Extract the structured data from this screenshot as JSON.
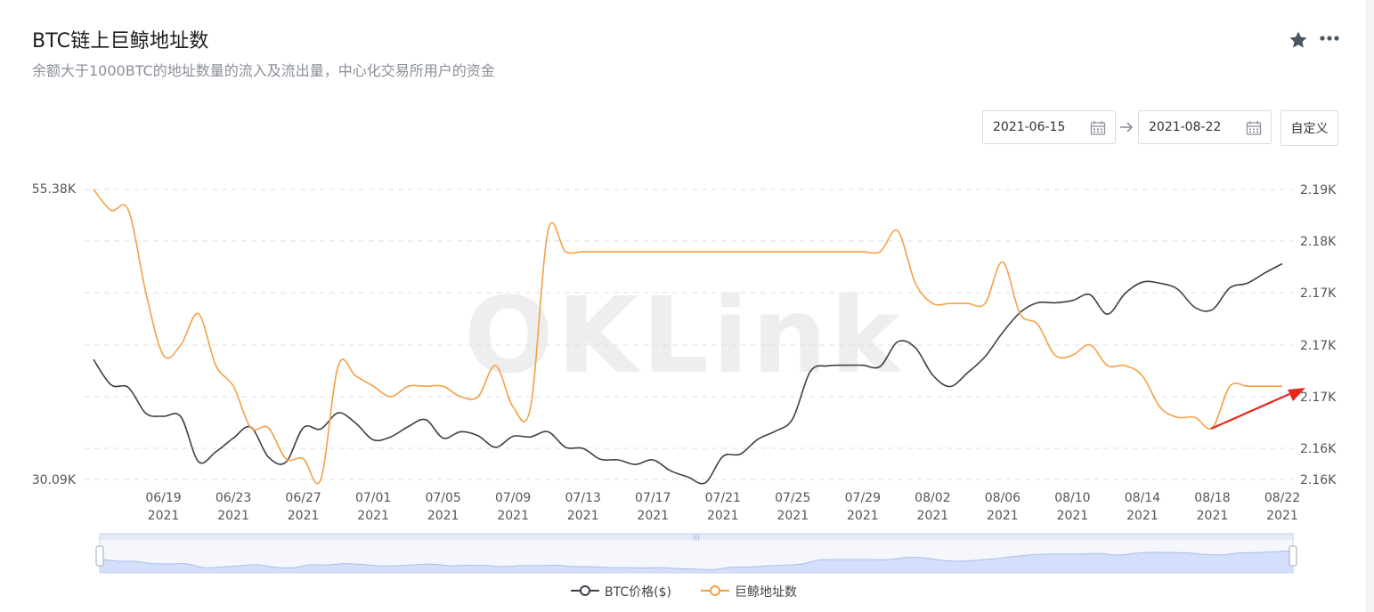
{
  "header": {
    "title": "BTC链上巨鲸地址数",
    "subtitle": "余额大于1000BTC的地址数量的流入及流出量，中心化交易所用户的资金",
    "star_icon": "star-icon",
    "more_icon": "more-dots-icon"
  },
  "controls": {
    "start_date": "2021-06-15",
    "end_date": "2021-08-22",
    "custom_label": "自定义",
    "calendar_icon": "calendar-icon",
    "arrow_icon": "arrow-right-icon"
  },
  "watermark": "OKLink",
  "colors": {
    "btc": "#3d3f4a",
    "whale": "#f5a044",
    "grid": "#dcdfe6",
    "annotation": "#e8261c",
    "zoom_fill": "#d4e0fb",
    "zoom_line": "#a9bde8"
  },
  "chart_data": {
    "type": "line",
    "x_ticks": [
      {
        "date": "06/19",
        "year": "2021"
      },
      {
        "date": "06/23",
        "year": "2021"
      },
      {
        "date": "06/27",
        "year": "2021"
      },
      {
        "date": "07/01",
        "year": "2021"
      },
      {
        "date": "07/05",
        "year": "2021"
      },
      {
        "date": "07/09",
        "year": "2021"
      },
      {
        "date": "07/13",
        "year": "2021"
      },
      {
        "date": "07/17",
        "year": "2021"
      },
      {
        "date": "07/21",
        "year": "2021"
      },
      {
        "date": "07/25",
        "year": "2021"
      },
      {
        "date": "07/29",
        "year": "2021"
      },
      {
        "date": "08/02",
        "year": "2021"
      },
      {
        "date": "08/06",
        "year": "2021"
      },
      {
        "date": "08/10",
        "year": "2021"
      },
      {
        "date": "08/14",
        "year": "2021"
      },
      {
        "date": "08/18",
        "year": "2021"
      },
      {
        "date": "08/22",
        "year": "2021"
      }
    ],
    "y_left": {
      "min_label": "30.09K",
      "max_label": "55.38K",
      "range": [
        30090,
        55380
      ]
    },
    "y_right": {
      "tick_labels": [
        "2.19K",
        "2.18K",
        "2.17K",
        "2.17K",
        "2.17K",
        "2.16K",
        "2.16K"
      ],
      "range": [
        2157,
        2185
      ]
    },
    "series": [
      {
        "name": "BTC价格($)",
        "color": "#3d3f4a",
        "x": [
          "2021-06-15",
          "2021-06-16",
          "2021-06-17",
          "2021-06-18",
          "2021-06-19",
          "2021-06-20",
          "2021-06-21",
          "2021-06-22",
          "2021-06-23",
          "2021-06-24",
          "2021-06-25",
          "2021-06-26",
          "2021-06-27",
          "2021-06-28",
          "2021-06-29",
          "2021-06-30",
          "2021-07-01",
          "2021-07-02",
          "2021-07-03",
          "2021-07-04",
          "2021-07-05",
          "2021-07-06",
          "2021-07-07",
          "2021-07-08",
          "2021-07-09",
          "2021-07-10",
          "2021-07-11",
          "2021-07-12",
          "2021-07-13",
          "2021-07-14",
          "2021-07-15",
          "2021-07-16",
          "2021-07-17",
          "2021-07-18",
          "2021-07-19",
          "2021-07-20",
          "2021-07-21",
          "2021-07-22",
          "2021-07-23",
          "2021-07-24",
          "2021-07-25",
          "2021-07-26",
          "2021-07-27",
          "2021-07-28",
          "2021-07-29",
          "2021-07-30",
          "2021-07-31",
          "2021-08-01",
          "2021-08-02",
          "2021-08-03",
          "2021-08-04",
          "2021-08-05",
          "2021-08-06",
          "2021-08-07",
          "2021-08-08",
          "2021-08-09",
          "2021-08-10",
          "2021-08-11",
          "2021-08-12",
          "2021-08-13",
          "2021-08-14",
          "2021-08-15",
          "2021-08-16",
          "2021-08-17",
          "2021-08-18",
          "2021-08-19",
          "2021-08-20",
          "2021-08-21",
          "2021-08-22"
        ],
        "values": [
          40550,
          38350,
          38100,
          35850,
          35600,
          35550,
          31650,
          32500,
          33700,
          34650,
          32050,
          31600,
          34600,
          34500,
          35900,
          35000,
          33550,
          33800,
          34700,
          35300,
          33700,
          34250,
          33900,
          32900,
          33850,
          33800,
          34250,
          32900,
          32800,
          31850,
          31800,
          31400,
          31800,
          30850,
          30300,
          29800,
          32100,
          32300,
          33600,
          34300,
          35400,
          39500,
          40000,
          40050,
          40050,
          39950,
          42100,
          41600,
          39200,
          38200,
          39400,
          40800,
          42900,
          44650,
          45500,
          45500,
          45700,
          46200,
          44500,
          46300,
          47300,
          47200,
          46700,
          45100,
          44900,
          46800,
          47200,
          48100,
          48900
        ]
      },
      {
        "name": "巨鲸地址数",
        "color": "#f5a044",
        "x": [
          "2021-06-15",
          "2021-06-16",
          "2021-06-17",
          "2021-06-18",
          "2021-06-19",
          "2021-06-20",
          "2021-06-21",
          "2021-06-22",
          "2021-06-23",
          "2021-06-24",
          "2021-06-25",
          "2021-06-26",
          "2021-06-27",
          "2021-06-28",
          "2021-06-29",
          "2021-06-30",
          "2021-07-01",
          "2021-07-02",
          "2021-07-03",
          "2021-07-04",
          "2021-07-05",
          "2021-07-06",
          "2021-07-07",
          "2021-07-08",
          "2021-07-09",
          "2021-07-10",
          "2021-07-11",
          "2021-07-12",
          "2021-07-13",
          "2021-07-14",
          "2021-07-15",
          "2021-07-16",
          "2021-07-17",
          "2021-07-18",
          "2021-07-19",
          "2021-07-20",
          "2021-07-21",
          "2021-07-22",
          "2021-07-23",
          "2021-07-24",
          "2021-07-25",
          "2021-07-26",
          "2021-07-27",
          "2021-07-28",
          "2021-07-29",
          "2021-07-30",
          "2021-07-31",
          "2021-08-01",
          "2021-08-02",
          "2021-08-03",
          "2021-08-04",
          "2021-08-05",
          "2021-08-06",
          "2021-08-07",
          "2021-08-08",
          "2021-08-09",
          "2021-08-10",
          "2021-08-11",
          "2021-08-12",
          "2021-08-13",
          "2021-08-14",
          "2021-08-15",
          "2021-08-16",
          "2021-08-17",
          "2021-08-18",
          "2021-08-19",
          "2021-08-20",
          "2021-08-21",
          "2021-08-22"
        ],
        "values": [
          2185,
          2183,
          2183,
          2175,
          2169,
          2170,
          2173,
          2168,
          2166,
          2162,
          2162,
          2159,
          2159,
          2157,
          2168,
          2167,
          2166,
          2165,
          2166,
          2166,
          2166,
          2165,
          2165,
          2168,
          2164,
          2164,
          2181,
          2179,
          2179,
          2179,
          2179,
          2179,
          2179,
          2179,
          2179,
          2179,
          2179,
          2179,
          2179,
          2179,
          2179,
          2179,
          2179,
          2179,
          2179,
          2179,
          2181,
          2176,
          2174,
          2174,
          2174,
          2174,
          2178,
          2173,
          2172,
          2169,
          2169,
          2170,
          2168,
          2168,
          2167,
          2164,
          2163,
          2163,
          2162,
          2166,
          2166,
          2166,
          2166
        ]
      }
    ],
    "legend": [
      "BTC价格($)",
      "巨鲸地址数"
    ],
    "legend_position": "bottom-center",
    "grid": true
  }
}
